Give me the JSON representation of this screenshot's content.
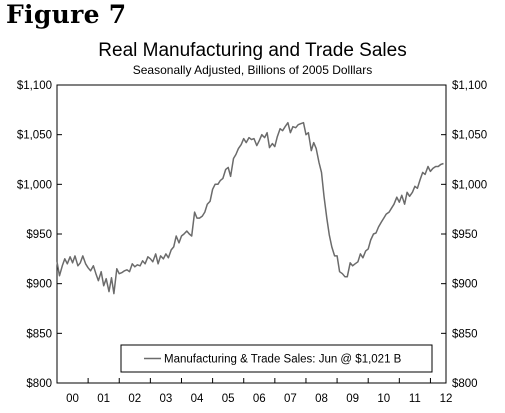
{
  "figure_label": "Figure 7",
  "colors": {
    "line": "#6b6b6b",
    "axis": "#000000",
    "background": "#ffffff"
  },
  "chart_data": {
    "type": "line",
    "title": "Real Manufacturing and Trade Sales",
    "subtitle": "Seasonally Adjusted, Billions of 2005 Dolllars",
    "xlabel": "",
    "ylabel": "",
    "ylim": [
      800,
      1100
    ],
    "xlim": [
      2000.0,
      2012.5
    ],
    "y_ticks": [
      800,
      850,
      900,
      950,
      1000,
      1050,
      1100
    ],
    "y_tick_labels": [
      "$800",
      "$850",
      "$900",
      "$950",
      "$1,000",
      "$1,050",
      "$1,100"
    ],
    "x_tick_labels": [
      "00",
      "01",
      "02",
      "03",
      "04",
      "05",
      "06",
      "07",
      "08",
      "09",
      "10",
      "11",
      "12"
    ],
    "grid": false,
    "legend_position": "bottom-right",
    "series": [
      {
        "name": "Manufacturing & Trade Sales: Jun @ $1,021 B",
        "x": [
          2000.0,
          2000.08,
          2000.17,
          2000.25,
          2000.33,
          2000.42,
          2000.5,
          2000.58,
          2000.67,
          2000.75,
          2000.83,
          2000.92,
          2001.0,
          2001.08,
          2001.17,
          2001.25,
          2001.33,
          2001.42,
          2001.5,
          2001.58,
          2001.67,
          2001.75,
          2001.83,
          2001.92,
          2002.0,
          2002.08,
          2002.17,
          2002.25,
          2002.33,
          2002.42,
          2002.5,
          2002.58,
          2002.67,
          2002.75,
          2002.83,
          2002.92,
          2003.0,
          2003.08,
          2003.17,
          2003.25,
          2003.33,
          2003.42,
          2003.5,
          2003.58,
          2003.67,
          2003.75,
          2003.83,
          2003.92,
          2004.0,
          2004.08,
          2004.17,
          2004.25,
          2004.33,
          2004.42,
          2004.5,
          2004.58,
          2004.67,
          2004.75,
          2004.83,
          2004.92,
          2005.0,
          2005.08,
          2005.17,
          2005.25,
          2005.33,
          2005.42,
          2005.5,
          2005.58,
          2005.67,
          2005.75,
          2005.83,
          2005.92,
          2006.0,
          2006.08,
          2006.17,
          2006.25,
          2006.33,
          2006.42,
          2006.5,
          2006.58,
          2006.67,
          2006.75,
          2006.83,
          2006.92,
          2007.0,
          2007.08,
          2007.17,
          2007.25,
          2007.33,
          2007.42,
          2007.5,
          2007.58,
          2007.67,
          2007.75,
          2007.83,
          2007.92,
          2008.0,
          2008.08,
          2008.17,
          2008.25,
          2008.33,
          2008.42,
          2008.5,
          2008.58,
          2008.67,
          2008.75,
          2008.83,
          2008.92,
          2009.0,
          2009.08,
          2009.17,
          2009.25,
          2009.33,
          2009.42,
          2009.5,
          2009.58,
          2009.67,
          2009.75,
          2009.83,
          2009.92,
          2010.0,
          2010.08,
          2010.17,
          2010.25,
          2010.33,
          2010.42,
          2010.5,
          2010.58,
          2010.67,
          2010.75,
          2010.83,
          2010.92,
          2011.0,
          2011.08,
          2011.17,
          2011.25,
          2011.33,
          2011.42,
          2011.5,
          2011.58,
          2011.67,
          2011.75,
          2011.83,
          2011.92,
          2012.0,
          2012.08,
          2012.17,
          2012.25,
          2012.33,
          2012.42
        ],
        "values": [
          922,
          908,
          918,
          925,
          920,
          927,
          921,
          928,
          918,
          921,
          928,
          920,
          916,
          913,
          918,
          910,
          903,
          912,
          898,
          905,
          892,
          906,
          890,
          915,
          910,
          911,
          913,
          914,
          912,
          920,
          917,
          919,
          918,
          923,
          920,
          927,
          925,
          922,
          930,
          920,
          928,
          925,
          930,
          926,
          934,
          937,
          948,
          941,
          948,
          950,
          953,
          950,
          948,
          972,
          966,
          966,
          968,
          972,
          980,
          983,
          995,
          1000,
          1000,
          1004,
          1006,
          1015,
          1017,
          1008,
          1026,
          1030,
          1036,
          1040,
          1046,
          1042,
          1047,
          1045,
          1046,
          1039,
          1044,
          1050,
          1047,
          1052,
          1037,
          1041,
          1038,
          1048,
          1056,
          1054,
          1058,
          1062,
          1052,
          1058,
          1057,
          1060,
          1061,
          1062,
          1050,
          1052,
          1034,
          1042,
          1036,
          1022,
          1012,
          988,
          966,
          949,
          937,
          928,
          928,
          912,
          910,
          907,
          907,
          921,
          918,
          920,
          922,
          930,
          926,
          933,
          935,
          944,
          950,
          951,
          957,
          962,
          966,
          970,
          972,
          976,
          980,
          987,
          982,
          989,
          980,
          992,
          988,
          992,
          998,
          996,
          1005,
          1012,
          1010,
          1018,
          1013,
          1016,
          1018,
          1018,
          1020,
          1021
        ]
      }
    ]
  }
}
